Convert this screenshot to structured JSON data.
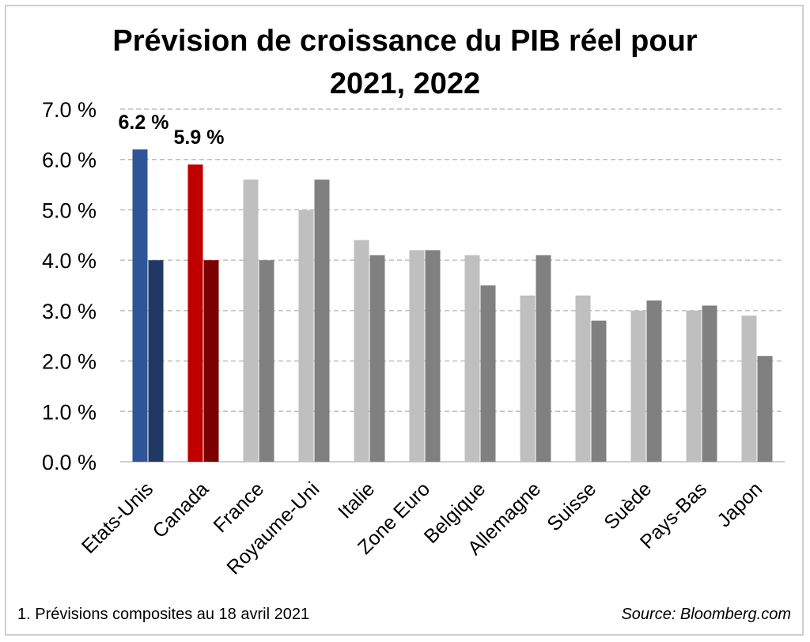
{
  "chart_data": {
    "type": "bar",
    "title_line1": "Prévision de croissance du PIB réel pour",
    "title_line2": "2021, 2022",
    "categories": [
      "Etats-Unis",
      "Canada",
      "France",
      "Royaume-Uni",
      "Italie",
      "Zone Euro",
      "Belgique",
      "Allemagne",
      "Suisse",
      "Suède",
      "Pays-Bas",
      "Japon"
    ],
    "series": [
      {
        "values": [
          6.2,
          5.9,
          5.6,
          5.0,
          4.4,
          4.2,
          4.1,
          3.3,
          3.3,
          3.0,
          3.0,
          2.9
        ]
      },
      {
        "values": [
          4.0,
          4.0,
          4.0,
          5.6,
          4.1,
          4.2,
          3.5,
          4.1,
          2.8,
          3.2,
          3.1,
          2.1
        ]
      }
    ],
    "ylim": [
      0,
      7
    ],
    "yticks": [
      "0.0 %",
      "1.0 %",
      "2.0 %",
      "3.0 %",
      "4.0 %",
      "5.0 %",
      "6.0 %",
      "7.0 %"
    ],
    "data_labels": [
      {
        "category": "Etats-Unis",
        "text": "6.2 %"
      },
      {
        "category": "Canada",
        "text": "5.9 %"
      }
    ],
    "grid": true,
    "colors": {
      "us_2021": "#2e5597",
      "us_2022": "#1f3864",
      "canada_2021": "#c00000",
      "canada_2022": "#7b0000",
      "other_2021": "#bfbfbf",
      "other_2022": "#808080",
      "grid": "#bfbfbf"
    }
  },
  "footnote": "1. Prévisions composites au 18 avril 2021",
  "source": "Source: Bloomberg.com"
}
